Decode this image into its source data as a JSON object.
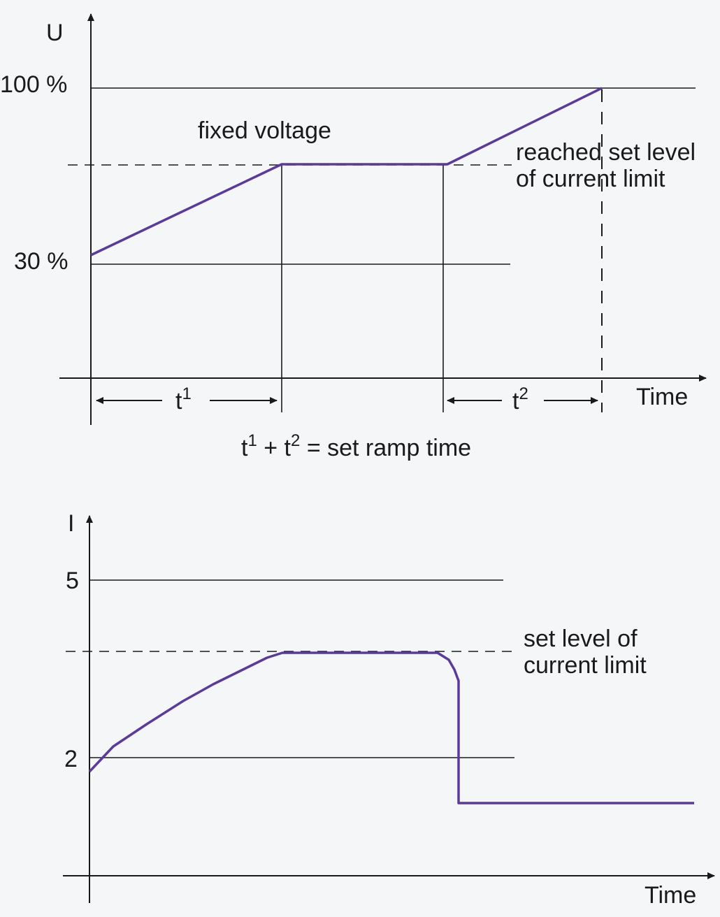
{
  "colors": {
    "background": "#f4f6f8",
    "line": "#1a1a1a",
    "curve": "#5b3aa0"
  },
  "voltage_diagram": {
    "y_axis_label": "U",
    "x_axis_label": "Time",
    "tick_100": "100 %",
    "tick_30": "30 %",
    "fixed_voltage_label": "fixed voltage",
    "current_limit_label_line1": "reached set level",
    "current_limit_label_line2": "of current limit",
    "t1_base": "t",
    "t1_sup": "1",
    "t2_base": "t",
    "t2_sup": "2",
    "formula": {
      "t1": "t",
      "sup1": "1",
      "plus_t2": " + t",
      "sup2": "2",
      "rest": " = set ramp time"
    }
  },
  "current_diagram": {
    "y_axis_label": "I",
    "x_axis_label": "Time",
    "tick_5": "5",
    "tick_2": "2",
    "limit_label_line1": "set level of",
    "limit_label_line2": "current limit"
  }
}
